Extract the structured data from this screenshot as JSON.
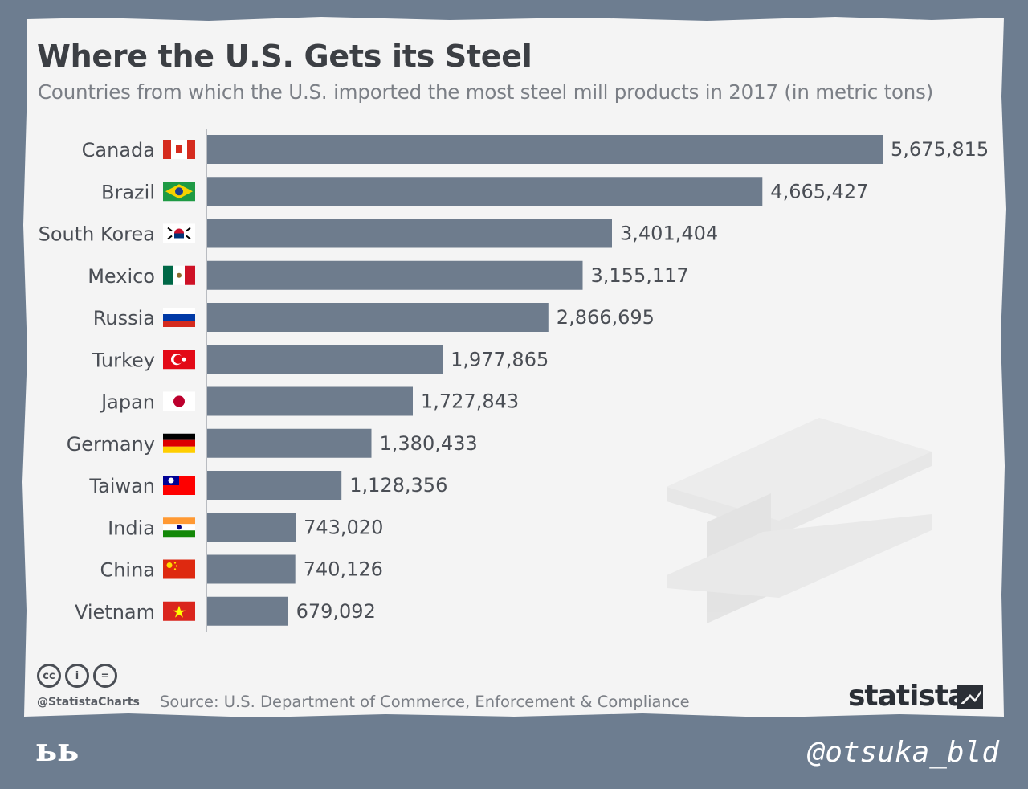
{
  "header": {
    "title": "Where the U.S. Gets its Steel",
    "subtitle": "Countries from which the U.S. imported the most steel mill products in 2017 (in metric tons)"
  },
  "chart_data": {
    "type": "bar",
    "orientation": "horizontal",
    "title": "Where the U.S. Gets its Steel",
    "subtitle": "Countries from which the U.S. imported the most steel mill products in 2017 (in metric tons)",
    "categories": [
      "Canada",
      "Brazil",
      "South Korea",
      "Mexico",
      "Russia",
      "Turkey",
      "Japan",
      "Germany",
      "Taiwan",
      "India",
      "China",
      "Vietnam"
    ],
    "values": [
      5675815,
      4665427,
      3401404,
      3155117,
      2866695,
      1977865,
      1727843,
      1380433,
      1128356,
      743020,
      740126,
      679092
    ],
    "value_labels": [
      "5,675,815",
      "4,665,427",
      "3,401,404",
      "3,155,117",
      "2,866,695",
      "1,977,865",
      "1,727,843",
      "1,380,433",
      "1,128,356",
      "743,020",
      "740,126",
      "679,092"
    ],
    "xlim": [
      0,
      5675815
    ],
    "grid": false,
    "bar_color": "#6e7c8d"
  },
  "flags": [
    "canada-flag",
    "brazil-flag",
    "south-korea-flag",
    "mexico-flag",
    "russia-flag",
    "turkey-flag",
    "japan-flag",
    "germany-flag",
    "taiwan-flag",
    "india-flag",
    "china-flag",
    "vietnam-flag"
  ],
  "footer": {
    "license_icons": [
      "cc",
      "i",
      "="
    ],
    "handle": "@StatistaCharts",
    "source": "Source: U.S. Department of Commerce, Enforcement & Compliance",
    "brand": "statista"
  },
  "overlay": {
    "corner_mark": "ьь",
    "watermark": "@otsuka_bld"
  },
  "colors": {
    "frame": "#6d7d90",
    "paper": "#f4f4f4",
    "bar": "#6e7c8d",
    "title": "#3c3f44",
    "muted": "#7b7f86"
  }
}
